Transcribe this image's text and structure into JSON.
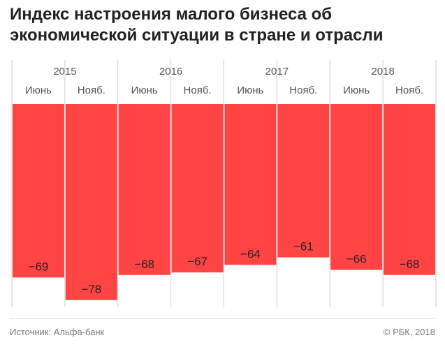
{
  "title_lines": [
    "Индекс настроения малого бизнеса об",
    "экономической ситуации в стране и отрасли"
  ],
  "source": "Источник: Альфа-банк",
  "copyright": "© РБК, 2018",
  "colors": {
    "bar": "#ff4444",
    "grid": "#cfcfcf",
    "text": "#333333",
    "muted": "#7a7a7a"
  },
  "chart_data": {
    "type": "bar",
    "title": "Индекс настроения малого бизнеса об экономической ситуации в стране и отрасли",
    "years": [
      "2015",
      "2016",
      "2017",
      "2018"
    ],
    "categories": [
      "Июнь",
      "Нояб.",
      "Июнь",
      "Нояб.",
      "Июнь",
      "Нояб.",
      "Июнь",
      "Нояб."
    ],
    "values": [
      -69,
      -78,
      -68,
      -67,
      -64,
      -61,
      -66,
      -68
    ],
    "value_labels": [
      "−69",
      "−78",
      "−68",
      "−67",
      "−64",
      "−61",
      "−66",
      "−68"
    ],
    "ylim": [
      -80,
      0
    ],
    "grid": true,
    "legend": "none"
  }
}
